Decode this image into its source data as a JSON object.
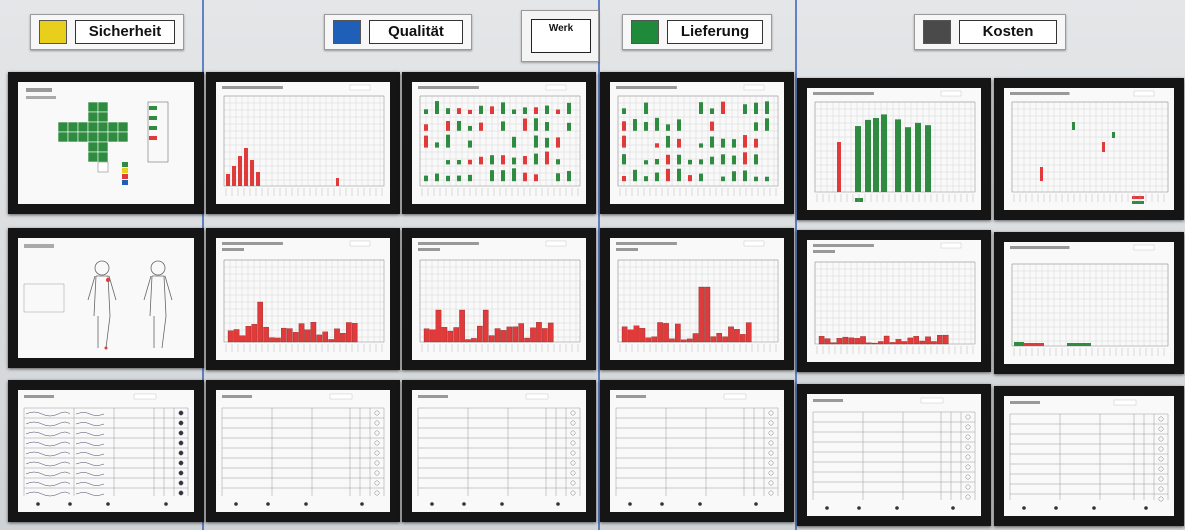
{
  "board": {
    "categories": [
      {
        "label": "Sicherheit",
        "color": "#e7cf1c"
      },
      {
        "label": "Qualität",
        "color": "#1f5fb8"
      },
      {
        "label": "Lieferung",
        "color": "#1f8a3a"
      },
      {
        "label": "Kosten",
        "color": "#4a4a4a"
      }
    ],
    "werk_label": "Werk"
  },
  "colors": {
    "bar_red": "#e03a3a",
    "bar_green": "#2e8b3f",
    "frame": "#151515",
    "divider": "#2b57b7"
  }
}
